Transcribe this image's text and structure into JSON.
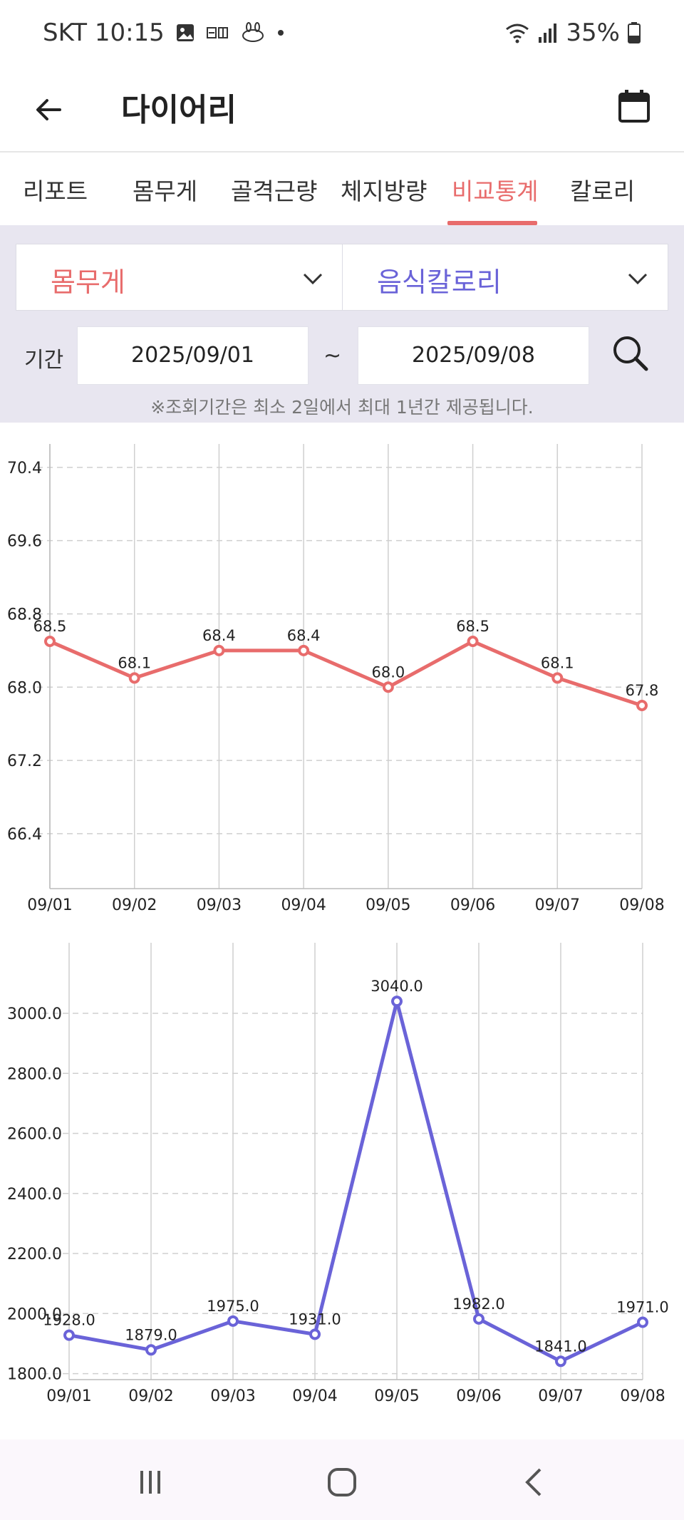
{
  "status": {
    "carrier_time": "SKT 10:15",
    "battery": "35%",
    "icons": [
      "image-icon",
      "hanja-icon",
      "rabbit-icon",
      "dot-icon",
      "wifi-icon",
      "signal-icon",
      "battery-icon"
    ]
  },
  "header": {
    "back_icon": "arrow-left-icon",
    "title": "다이어리",
    "calendar_icon": "calendar-icon"
  },
  "tabs": [
    {
      "label": "리포트"
    },
    {
      "label": "몸무게"
    },
    {
      "label": "골격근량"
    },
    {
      "label": "체지방량"
    },
    {
      "label": "비교통계",
      "active": true
    },
    {
      "label": "칼로리"
    }
  ],
  "filters": {
    "metric_left": "몸무게",
    "metric_right": "음식칼로리",
    "period_label": "기간",
    "start_date": "2025/09/01",
    "separator": "~",
    "end_date": "2025/09/08",
    "notice": "※조회기간은 최소 2일에서 최대 1년간 제공됩니다."
  },
  "colors": {
    "weight": "#e86c6c",
    "calorie": "#6a63d8",
    "panel_bg": "#e8e6f0"
  },
  "chart_data": [
    {
      "type": "line",
      "categories": [
        "09/01",
        "09/02",
        "09/03",
        "09/04",
        "09/05",
        "09/06",
        "09/07",
        "09/08"
      ],
      "series": [
        {
          "values": [
            68.5,
            68.1,
            68.4,
            68.4,
            68.0,
            68.5,
            68.1,
            67.8
          ],
          "color": "#e86c6c"
        }
      ],
      "value_labels": [
        "68.5",
        "68.1",
        "68.4",
        "68.4",
        "68.0",
        "68.5",
        "68.1",
        "67.8"
      ],
      "yticks": [
        "70.4",
        "69.6",
        "68.8",
        "68.0",
        "67.2",
        "66.4"
      ],
      "ylim": [
        65.8,
        70.5
      ],
      "grid": true
    },
    {
      "type": "line",
      "categories": [
        "09/01",
        "09/02",
        "09/03",
        "09/04",
        "09/05",
        "09/06",
        "09/07",
        "09/08"
      ],
      "series": [
        {
          "values": [
            1928.0,
            1879.0,
            1975.0,
            1931.0,
            3040.0,
            1982.0,
            1841.0,
            1971.0
          ],
          "color": "#6a63d8"
        }
      ],
      "value_labels": [
        "1928.0",
        "1879.0",
        "1975.0",
        "1931.0",
        "3040.0",
        "1982.0",
        "1841.0",
        "1971.0"
      ],
      "yticks": [
        "3000.0",
        "2800.0",
        "2600.0",
        "2400.0",
        "2200.0",
        "2000.0",
        "1800.0"
      ],
      "ylim": [
        1780,
        3140
      ],
      "grid": true
    }
  ],
  "navbar": {
    "icons": [
      "recent-apps-icon",
      "home-icon",
      "back-icon"
    ]
  }
}
